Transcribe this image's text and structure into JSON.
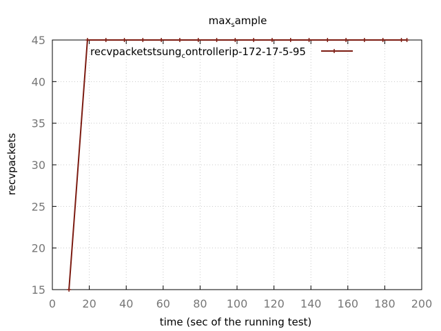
{
  "chart_data": {
    "type": "line",
    "title": {
      "base": "max",
      "sub": "s",
      "rest": "ample"
    },
    "xlabel": "time (sec of the running test)",
    "ylabel": "recvpackets",
    "xlim": [
      0,
      200
    ],
    "ylim": [
      15,
      45
    ],
    "xticks": [
      0,
      20,
      40,
      60,
      80,
      100,
      120,
      140,
      160,
      180,
      200
    ],
    "yticks": [
      15,
      20,
      25,
      30,
      35,
      40,
      45
    ],
    "grid": true,
    "legend_position": "top-left",
    "series": [
      {
        "name": {
          "base": "recvpacketstsung",
          "sub": "c",
          "rest": "ontrollerip-172-17-5-95"
        },
        "color": "#7b1a10",
        "x": [
          9,
          19,
          29,
          39,
          49,
          59,
          69,
          79,
          89,
          99,
          109,
          119,
          129,
          139,
          149,
          159,
          169,
          179,
          189,
          192
        ],
        "y": [
          15,
          45,
          45,
          45,
          45,
          45,
          45,
          45,
          45,
          45,
          45,
          45,
          45,
          45,
          45,
          45,
          45,
          45,
          45,
          45
        ]
      }
    ]
  }
}
